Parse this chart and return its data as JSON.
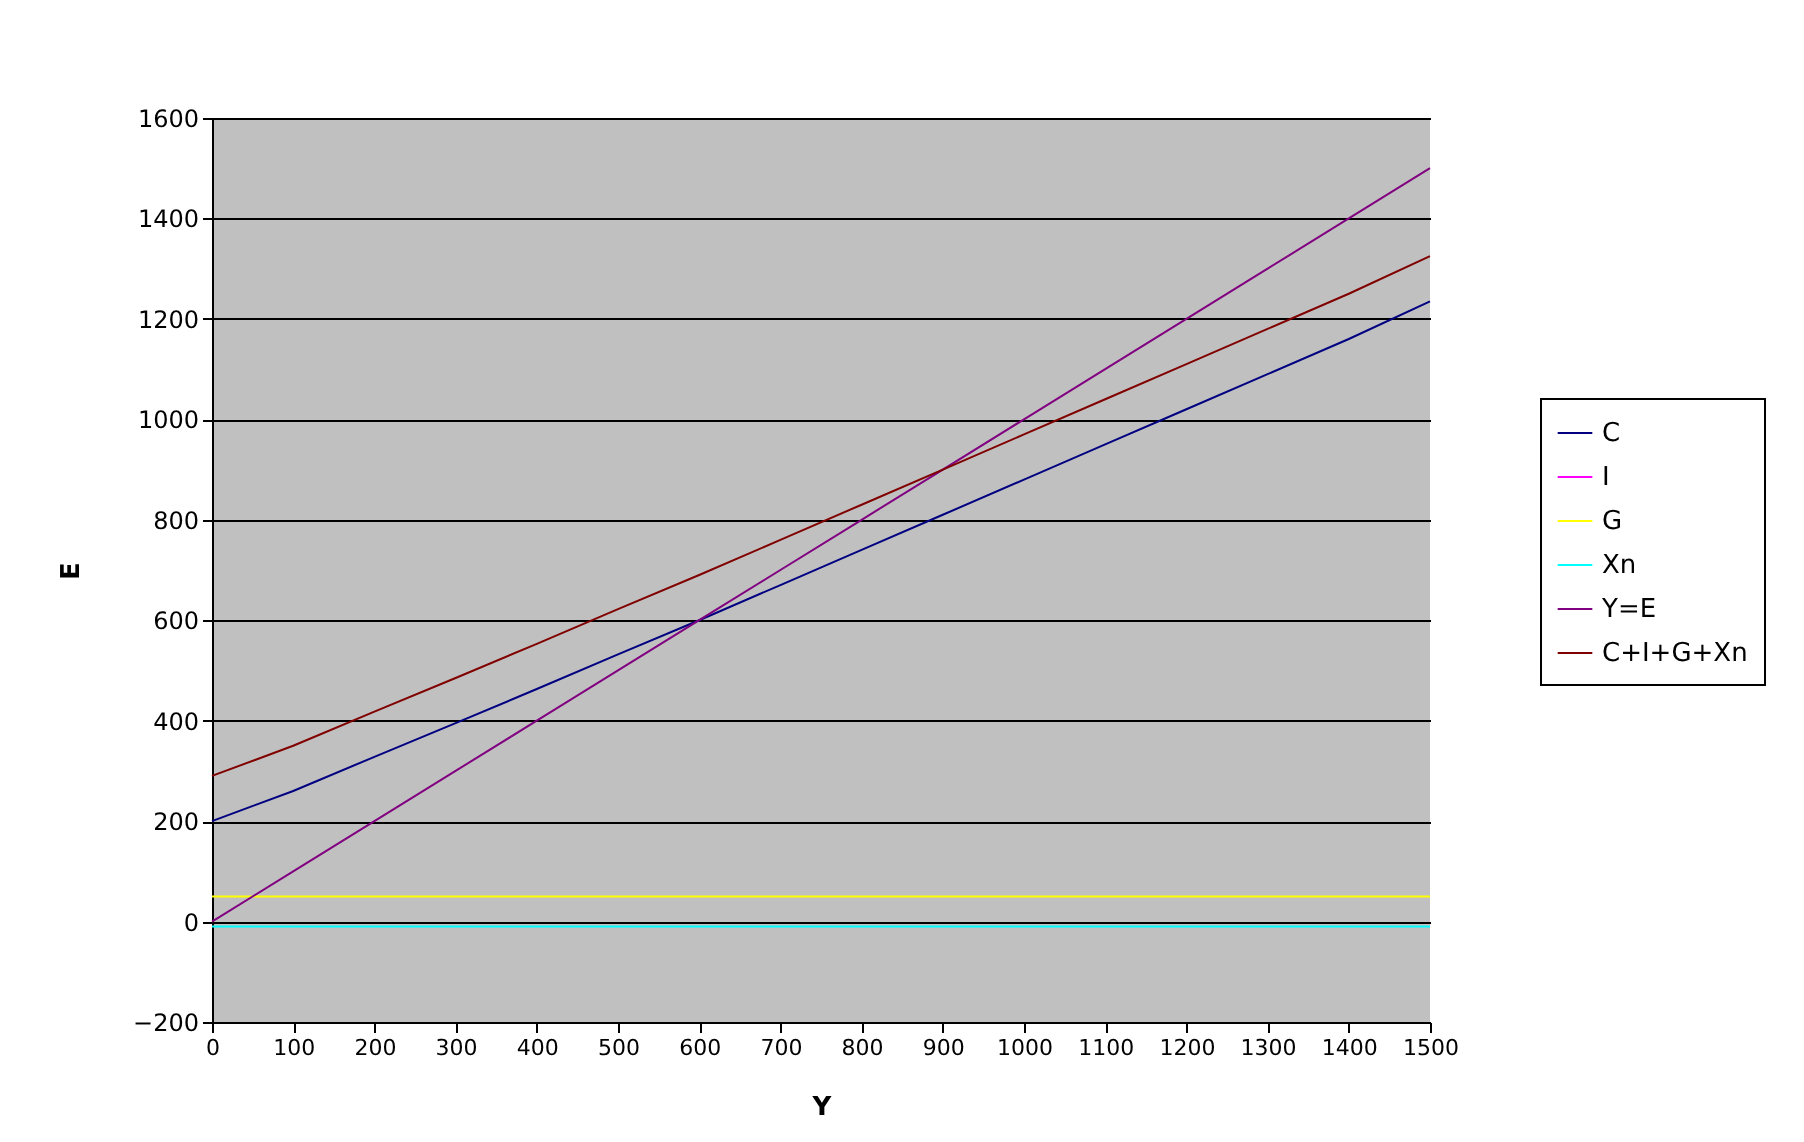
{
  "chart_data": {
    "type": "line",
    "xlabel": "Y",
    "ylabel": "E",
    "x": [
      0,
      100,
      200,
      300,
      400,
      500,
      600,
      700,
      800,
      900,
      1000,
      1100,
      1200,
      1300,
      1400,
      1500
    ],
    "series": [
      {
        "name": "C",
        "color": "#000080",
        "values": [
          200,
          260,
          328,
          395,
          463,
          532,
          600,
          670,
          740,
          810,
          880,
          950,
          1020,
          1090,
          1160,
          1235
        ]
      },
      {
        "name": "I",
        "color": "#ff00ff",
        "values": [
          null,
          null,
          null,
          null,
          null,
          null,
          null,
          null,
          null,
          null,
          null,
          null,
          null,
          null,
          null,
          null
        ]
      },
      {
        "name": "G",
        "color": "#ffff00",
        "values": [
          50,
          50,
          50,
          50,
          50,
          50,
          50,
          50,
          50,
          50,
          50,
          50,
          50,
          50,
          50,
          50
        ]
      },
      {
        "name": "Xn",
        "color": "#00ffff",
        "values": [
          -10,
          -10,
          -10,
          -10,
          -10,
          -10,
          -10,
          -10,
          -10,
          -10,
          -10,
          -10,
          -10,
          -10,
          -10,
          -10
        ]
      },
      {
        "name": "Y=E",
        "color": "#800080",
        "values": [
          0,
          100,
          200,
          300,
          400,
          500,
          600,
          700,
          800,
          900,
          1000,
          1100,
          1200,
          1300,
          1400,
          1500
        ]
      },
      {
        "name": "C+I+G+Xn",
        "color": "#800000",
        "values": [
          290,
          350,
          418,
          485,
          553,
          622,
          690,
          760,
          830,
          900,
          970,
          1040,
          1110,
          1180,
          1250,
          1325
        ]
      }
    ],
    "xlim": [
      0,
      1500
    ],
    "xticks": [
      0,
      100,
      200,
      300,
      400,
      500,
      600,
      700,
      800,
      900,
      1000,
      1100,
      1200,
      1300,
      1400,
      1500
    ],
    "ylim": [
      -200,
      1600
    ],
    "yticks": [
      -200,
      0,
      200,
      400,
      600,
      800,
      1000,
      1200,
      1400,
      1600
    ],
    "grid": "y",
    "legend": "right"
  }
}
